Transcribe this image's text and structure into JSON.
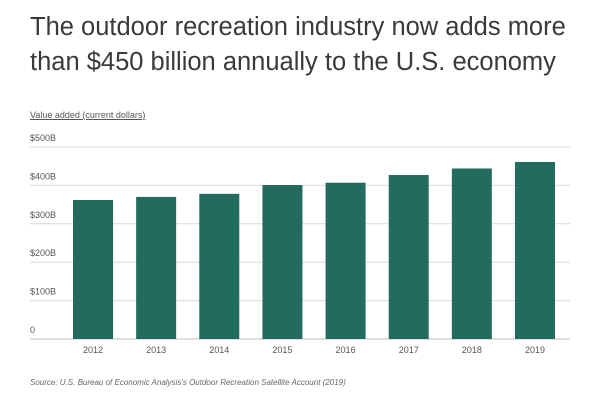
{
  "title": "The outdoor recreation industry now adds more than $450 billion annually to the U.S. economy",
  "source": "Source:  U.S. Bureau of Economic Analysis's Outdoor Recreation Satellite Account (2019)",
  "colors": {
    "bar": "#236b5e",
    "grid": "#d9d9d9",
    "text": "#3a3a3a"
  },
  "chart_data": {
    "type": "bar",
    "ylabel": "Value added (current dollars)",
    "xlabel": "",
    "categories": [
      "2012",
      "2013",
      "2014",
      "2015",
      "2016",
      "2017",
      "2018",
      "2019"
    ],
    "values": [
      362,
      370,
      378,
      401,
      407,
      427,
      444,
      461
    ],
    "ylim": [
      0,
      500
    ],
    "yticks": [
      0,
      100,
      200,
      300,
      400,
      500
    ],
    "ytick_labels": [
      "0",
      "$100B",
      "$200B",
      "$300B",
      "$400B",
      "$500B"
    ],
    "grid": true,
    "legend": "none"
  }
}
